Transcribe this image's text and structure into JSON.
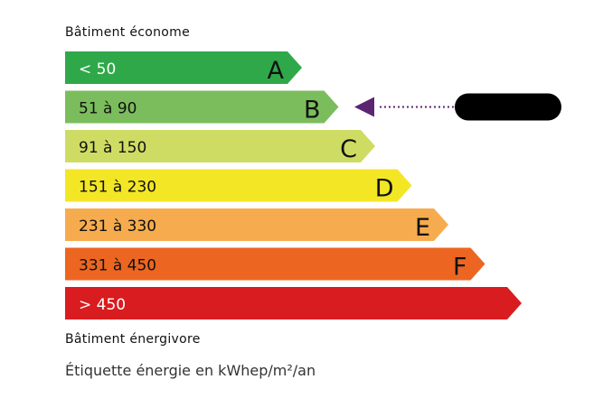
{
  "top_label": "Bâtiment économe",
  "bottom_label": "Bâtiment énergivore",
  "footer": "Étiquette énergie en kWhep/m²/an",
  "classes": [
    {
      "range": "< 50",
      "letter": "A",
      "color": "#2fa84a",
      "text_color": "#ffffff"
    },
    {
      "range": "51 à 90",
      "letter": "B",
      "color": "#7bbd5d",
      "text_color": "#111111"
    },
    {
      "range": "91 à 150",
      "letter": "C",
      "color": "#cfdc63",
      "text_color": "#111111"
    },
    {
      "range": "151 à 230",
      "letter": "D",
      "color": "#f3e625",
      "text_color": "#111111"
    },
    {
      "range": "231 à 330",
      "letter": "E",
      "color": "#f6ac4e",
      "text_color": "#111111"
    },
    {
      "range": "331 à 450",
      "letter": "F",
      "color": "#ec6621",
      "text_color": "#111111"
    },
    {
      "range": "> 450",
      "letter": "",
      "color": "#d91c1f",
      "text_color": "#ffffff"
    }
  ],
  "indicator": {
    "class": "B",
    "color": "#5b2572",
    "value_redacted": true
  }
}
